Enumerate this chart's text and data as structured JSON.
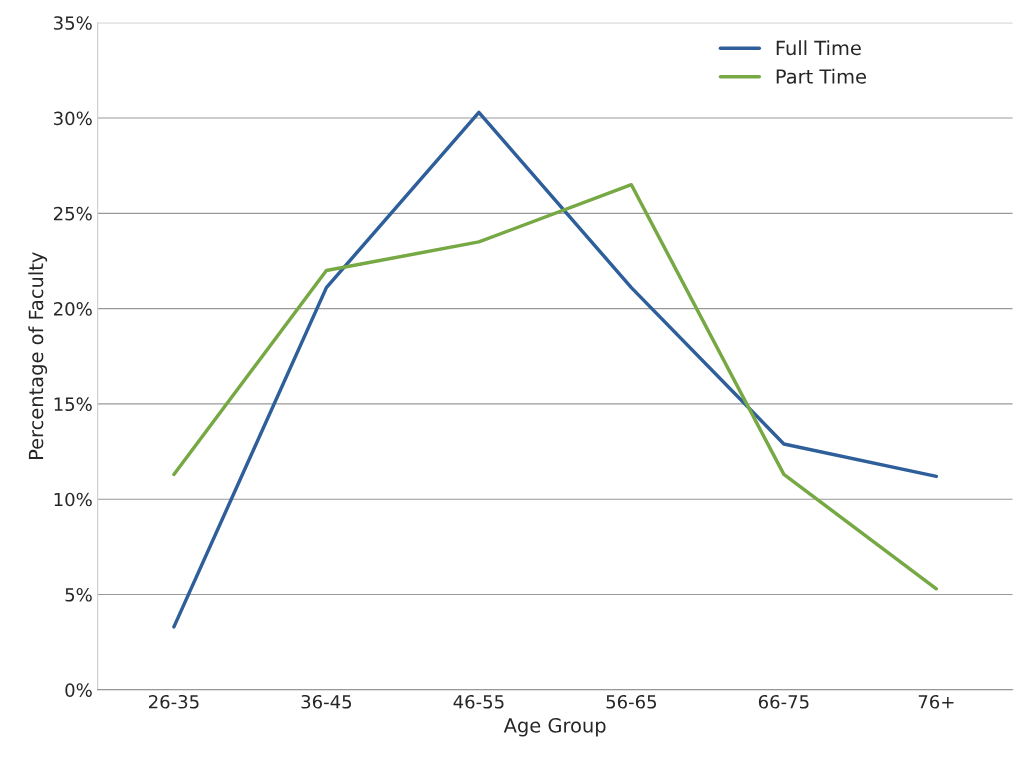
{
  "chart_data": {
    "type": "line",
    "xlabel": "Age Group",
    "ylabel": "Percentage of Faculty",
    "categories": [
      "26-35",
      "36-45",
      "46-55",
      "56-65",
      "66-75",
      "76+"
    ],
    "series": [
      {
        "name": "Full Time",
        "color": "#2e5f9a",
        "values": [
          3.3,
          21.1,
          30.3,
          21.1,
          12.9,
          11.2
        ]
      },
      {
        "name": "Part Time",
        "color": "#76a844",
        "values": [
          11.3,
          22.0,
          23.5,
          26.5,
          11.3,
          5.3
        ]
      }
    ],
    "ylim": [
      0,
      35
    ],
    "yticks": [
      {
        "value": 0,
        "label": "0%"
      },
      {
        "value": 5,
        "label": "5%"
      },
      {
        "value": 10,
        "label": "10%"
      },
      {
        "value": 15,
        "label": "15%"
      },
      {
        "value": 20,
        "label": "20%"
      },
      {
        "value": 25,
        "label": "25%"
      },
      {
        "value": 30,
        "label": "30%"
      },
      {
        "value": 35,
        "label": "35%"
      }
    ],
    "grid": "y",
    "legend": "top right",
    "marker": "none",
    "line_style": "solid"
  }
}
